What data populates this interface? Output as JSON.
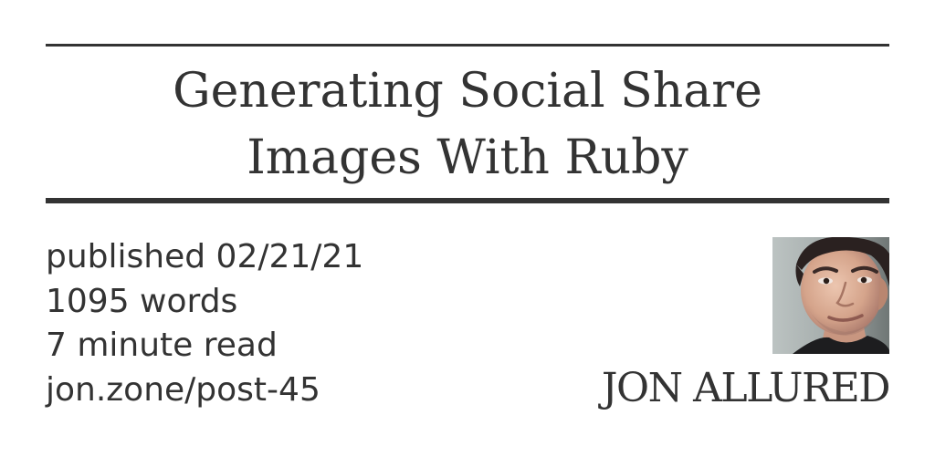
{
  "post": {
    "title_line_1": "Generating Social Share",
    "title_line_2": "Images With Ruby",
    "published": "published 02/21/21",
    "word_count": "1095 words",
    "read_time": "7 minute read",
    "short_url": "jon.zone/post-45"
  },
  "author": {
    "name": "JON ALLURED",
    "avatar_icon": "author-photo"
  },
  "colors": {
    "text": "#333333",
    "background": "#ffffff"
  }
}
